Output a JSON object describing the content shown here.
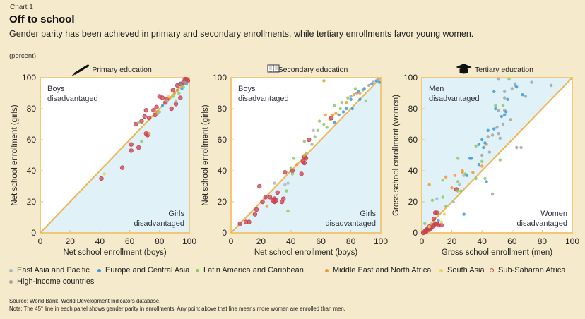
{
  "header": {
    "label": "Chart 1",
    "title": "Off to school",
    "subtitle": "Gender parity has been achieved in primary and secondary enrollments, while tertiary enrollments favor young women.",
    "unit": "(percent)"
  },
  "colors": {
    "background": "#f5eacb",
    "axis": "#f2c878",
    "parity_line": "#f0b450",
    "shade": "#e1f1f8",
    "plot_bg": "#ffffff"
  },
  "legend": [
    {
      "key": "eap",
      "label": "East Asia and Pacific",
      "color": "#a9b7c8"
    },
    {
      "key": "eca",
      "label": "Europe and Central Asia",
      "color": "#3a9be0"
    },
    {
      "key": "lac",
      "label": "Latin America and Caribbean",
      "color": "#8cc867"
    },
    {
      "key": "mena",
      "label": "Middle East and North Africa",
      "color": "#f39a2b"
    },
    {
      "key": "sa",
      "label": "South Asia",
      "color": "#e8d65a"
    },
    {
      "key": "ssa",
      "label": "Sub-Saharan Africa",
      "color": "#c8414e"
    },
    {
      "key": "hi",
      "label": "High-income countries",
      "color": "#a3a3a3"
    }
  ],
  "source": "Source: World Bank, World Development Indicators database.",
  "note": "Note: The 45° line in each panel shows gender parity in enrollments. Any point above that line means more women are enrolled than men.",
  "chart_data": [
    {
      "type": "scatter",
      "title": "Primary education",
      "icon": "pen-icon",
      "xlabel": "Net school enrollment (boys)",
      "ylabel": "Net school enrollment (girls)",
      "xlim": [
        0,
        100
      ],
      "ylim": [
        0,
        100
      ],
      "ticks": [
        0,
        20,
        40,
        60,
        80,
        100
      ],
      "shade": "below",
      "annotations": {
        "upper_left": [
          "Boys",
          "disadvantaged"
        ],
        "lower_right": [
          "Girls",
          "disadvantaged"
        ]
      },
      "points": [
        [
          "ssa",
          41,
          35
        ],
        [
          "sa",
          43,
          38
        ],
        [
          "ssa",
          55,
          42
        ],
        [
          "ssa",
          61,
          53
        ],
        [
          "ssa",
          61,
          57
        ],
        [
          "lac",
          68,
          59
        ],
        [
          "ssa",
          66,
          55
        ],
        [
          "ssa",
          71,
          64
        ],
        [
          "ssa",
          72,
          63
        ],
        [
          "mena",
          73,
          64
        ],
        [
          "ssa",
          64,
          70
        ],
        [
          "ssa",
          68,
          72
        ],
        [
          "lac",
          66,
          71
        ],
        [
          "ssa",
          70,
          75
        ],
        [
          "ssa",
          73,
          74
        ],
        [
          "ssa",
          77,
          76
        ],
        [
          "ssa",
          76,
          79
        ],
        [
          "ssa",
          71,
          79
        ],
        [
          "lac",
          80,
          78
        ],
        [
          "eap",
          79,
          77
        ],
        [
          "ssa",
          78,
          81
        ],
        [
          "mena",
          78,
          78
        ],
        [
          "eca",
          82,
          82
        ],
        [
          "ssa",
          84,
          84
        ],
        [
          "ssa",
          85,
          86
        ],
        [
          "ssa",
          82,
          87
        ],
        [
          "ssa",
          80,
          88
        ],
        [
          "eap",
          85,
          85
        ],
        [
          "mena",
          87,
          87
        ],
        [
          "ssa",
          88,
          80
        ],
        [
          "ssa",
          91,
          83
        ],
        [
          "lac",
          91,
          85
        ],
        [
          "ssa",
          94,
          87
        ],
        [
          "mena",
          90,
          90
        ],
        [
          "eca",
          92,
          92
        ],
        [
          "ssa",
          89,
          92
        ],
        [
          "lac",
          93,
          90
        ],
        [
          "eca",
          95,
          93
        ],
        [
          "ssa",
          92,
          95
        ],
        [
          "ssa",
          94,
          96
        ],
        [
          "mena",
          95,
          95
        ],
        [
          "hi",
          96,
          96
        ],
        [
          "eca",
          97,
          97
        ],
        [
          "ssa",
          97,
          99
        ],
        [
          "lac",
          96,
          94
        ],
        [
          "hi",
          98,
          98
        ],
        [
          "eca",
          98,
          96
        ],
        [
          "mena",
          99,
          99
        ],
        [
          "ssa",
          99,
          98
        ],
        [
          "sa",
          86,
          88
        ],
        [
          "ssa",
          96,
          97
        ],
        [
          "hi",
          97,
          97
        ],
        [
          "eca",
          94,
          96
        ],
        [
          "ssa",
          98,
          99
        ],
        [
          "lac",
          89,
          88
        ],
        [
          "mena",
          92,
          92
        ]
      ]
    },
    {
      "type": "scatter",
      "title": "Secondary education",
      "icon": "book-icon",
      "xlabel": "Net school enrollment (boys)",
      "ylabel": "Net school enrollment (girls)",
      "xlim": [
        0,
        100
      ],
      "ylim": [
        0,
        100
      ],
      "ticks": [
        0,
        20,
        40,
        60,
        80,
        100
      ],
      "shade": "below",
      "annotations": {
        "upper_left": [
          "Boys",
          "disadvantaged"
        ],
        "lower_right": [
          "Girls",
          "disadvantaged"
        ]
      },
      "points": [
        [
          "ssa",
          6,
          6
        ],
        [
          "ssa",
          10,
          7
        ],
        [
          "ssa",
          12,
          7
        ],
        [
          "ssa",
          16,
          12
        ],
        [
          "ssa",
          17,
          15
        ],
        [
          "ssa",
          19,
          30
        ],
        [
          "ssa",
          21,
          20
        ],
        [
          "ssa",
          23,
          23
        ],
        [
          "mena",
          24,
          17
        ],
        [
          "ssa",
          26,
          23
        ],
        [
          "ssa",
          28,
          21
        ],
        [
          "ssa",
          29,
          20
        ],
        [
          "ssa",
          29,
          22
        ],
        [
          "ssa",
          30,
          21
        ],
        [
          "ssa",
          31,
          26
        ],
        [
          "eap",
          29,
          32
        ],
        [
          "ssa",
          34,
          20
        ],
        [
          "ssa",
          35,
          22
        ],
        [
          "eap",
          36,
          31
        ],
        [
          "ssa",
          36,
          39
        ],
        [
          "lac",
          37,
          27
        ],
        [
          "eap",
          38,
          32
        ],
        [
          "lac",
          38,
          14
        ],
        [
          "ssa",
          41,
          40
        ],
        [
          "lac",
          41,
          38
        ],
        [
          "lac",
          40,
          42
        ],
        [
          "mena",
          44,
          44
        ],
        [
          "lac",
          42,
          48
        ],
        [
          "ssa",
          47,
          38
        ],
        [
          "ssa",
          49,
          45
        ],
        [
          "ssa",
          50,
          48
        ],
        [
          "ssa",
          49,
          49
        ],
        [
          "ssa",
          48,
          46
        ],
        [
          "mena",
          49,
          50
        ],
        [
          "lac",
          50,
          51
        ],
        [
          "lac",
          54,
          57
        ],
        [
          "eap",
          55,
          66
        ],
        [
          "ssa",
          52,
          60
        ],
        [
          "lac",
          56,
          62
        ],
        [
          "lac",
          58,
          66
        ],
        [
          "lac",
          59,
          72
        ],
        [
          "lac",
          62,
          70
        ],
        [
          "mena",
          63,
          76
        ],
        [
          "mena",
          66,
          73
        ],
        [
          "lac",
          64,
          68
        ],
        [
          "ssa",
          67,
          74
        ],
        [
          "mena",
          68,
          76
        ],
        [
          "lac",
          69,
          82
        ],
        [
          "eca",
          69,
          71
        ],
        [
          "mena",
          70,
          77
        ],
        [
          "lac",
          73,
          80
        ],
        [
          "eca",
          75,
          78
        ],
        [
          "lac",
          74,
          84
        ],
        [
          "mena",
          77,
          84
        ],
        [
          "eca",
          77,
          80
        ],
        [
          "lac",
          78,
          87
        ],
        [
          "hi",
          80,
          88
        ],
        [
          "eca",
          80,
          86
        ],
        [
          "mena",
          82,
          89
        ],
        [
          "hi",
          84,
          90
        ],
        [
          "eca",
          85,
          91
        ],
        [
          "lac",
          83,
          93
        ],
        [
          "mena",
          86,
          90
        ],
        [
          "eca",
          86,
          86
        ],
        [
          "hi",
          88,
          92
        ],
        [
          "eca",
          89,
          93
        ],
        [
          "lac",
          90,
          85
        ],
        [
          "hi",
          92,
          95
        ],
        [
          "eca",
          94,
          96
        ],
        [
          "hi",
          95,
          97
        ],
        [
          "eca",
          97,
          98
        ],
        [
          "hi",
          98,
          99
        ],
        [
          "eca",
          99,
          97
        ],
        [
          "mena",
          62,
          98
        ],
        [
          "lac",
          49,
          59
        ],
        [
          "eca",
          72,
          76
        ],
        [
          "eca",
          81,
          80
        ]
      ]
    },
    {
      "type": "scatter",
      "title": "Tertiary education",
      "icon": "graduation-cap-icon",
      "xlabel": "Gross school enrollment (men)",
      "ylabel": "Gross school enrollment (women)",
      "xlim": [
        0,
        100
      ],
      "ylim": [
        0,
        100
      ],
      "ticks": [
        0,
        20,
        40,
        60,
        80,
        100
      ],
      "shade": "above",
      "annotations": {
        "upper_left": [
          "Men",
          "disadvantaged"
        ],
        "lower_right": [
          "Women",
          "disadvantaged"
        ]
      },
      "points": [
        [
          "ssa",
          1,
          0
        ],
        [
          "ssa",
          2,
          1
        ],
        [
          "ssa",
          3,
          1
        ],
        [
          "ssa",
          3,
          2
        ],
        [
          "ssa",
          4,
          2
        ],
        [
          "ssa",
          4,
          3
        ],
        [
          "ssa",
          5,
          2
        ],
        [
          "ssa",
          5,
          4
        ],
        [
          "ssa",
          6,
          3
        ],
        [
          "ssa",
          7,
          4
        ],
        [
          "ssa",
          8,
          5
        ],
        [
          "ssa",
          9,
          6
        ],
        [
          "ssa",
          10,
          6
        ],
        [
          "ssa",
          11,
          5
        ],
        [
          "ssa",
          13,
          5
        ],
        [
          "ssa",
          8,
          9
        ],
        [
          "ssa",
          9,
          13
        ],
        [
          "ssa",
          10,
          13
        ],
        [
          "lac",
          2,
          6
        ],
        [
          "sa",
          5,
          4
        ],
        [
          "mena",
          5,
          31
        ],
        [
          "lac",
          7,
          21
        ],
        [
          "eap",
          10,
          22
        ],
        [
          "eca",
          11,
          8
        ],
        [
          "sa",
          13,
          7
        ],
        [
          "lac",
          14,
          23
        ],
        [
          "lac",
          14,
          34
        ],
        [
          "mena",
          16,
          36
        ],
        [
          "sa",
          15,
          12
        ],
        [
          "lac",
          16,
          17
        ],
        [
          "mena",
          20,
          29
        ],
        [
          "eap",
          21,
          20
        ],
        [
          "mena",
          22,
          37
        ],
        [
          "ssa",
          23,
          28
        ],
        [
          "lac",
          24,
          27
        ],
        [
          "lac",
          24,
          33
        ],
        [
          "eap",
          25,
          31
        ],
        [
          "lac",
          26,
          27
        ],
        [
          "mena",
          27,
          39
        ],
        [
          "mena",
          27,
          40
        ],
        [
          "eap",
          28,
          37
        ],
        [
          "eca",
          28,
          12
        ],
        [
          "lac",
          29,
          38
        ],
        [
          "eca",
          30,
          37
        ],
        [
          "eca",
          33,
          48
        ],
        [
          "mena",
          34,
          39
        ],
        [
          "lac",
          36,
          35
        ],
        [
          "eca",
          38,
          44
        ],
        [
          "mena",
          40,
          43
        ],
        [
          "lac",
          40,
          46
        ],
        [
          "lac",
          42,
          35
        ],
        [
          "eca",
          43,
          33
        ],
        [
          "hi",
          47,
          25
        ],
        [
          "lac",
          24,
          48
        ],
        [
          "eca",
          32,
          48
        ],
        [
          "lac",
          36,
          56
        ],
        [
          "eca",
          38,
          57
        ],
        [
          "hi",
          40,
          50
        ],
        [
          "eca",
          41,
          55
        ],
        [
          "mena",
          43,
          57
        ],
        [
          "hi",
          45,
          52
        ],
        [
          "eca",
          40,
          60
        ],
        [
          "eca",
          42,
          58
        ],
        [
          "hi",
          44,
          62
        ],
        [
          "eca",
          44,
          66
        ],
        [
          "hi",
          47,
          63
        ],
        [
          "eca",
          48,
          67
        ],
        [
          "hi",
          50,
          68
        ],
        [
          "hi",
          51,
          64
        ],
        [
          "hi",
          52,
          61
        ],
        [
          "hi",
          54,
          70
        ],
        [
          "eca",
          55,
          76
        ],
        [
          "hi",
          55,
          79
        ],
        [
          "eca",
          56,
          78
        ],
        [
          "lac",
          49,
          82
        ],
        [
          "eca",
          49,
          80
        ],
        [
          "lac",
          54,
          82
        ],
        [
          "eca",
          48,
          91
        ],
        [
          "hi",
          55,
          87
        ],
        [
          "hi",
          55,
          91
        ],
        [
          "eca",
          57,
          86
        ],
        [
          "hi",
          60,
          93
        ],
        [
          "hi",
          62,
          95
        ],
        [
          "eca",
          63,
          94
        ],
        [
          "hi",
          62,
          96
        ],
        [
          "lac",
          58,
          99
        ],
        [
          "hi",
          51,
          99
        ],
        [
          "eca",
          67,
          89
        ],
        [
          "hi",
          69,
          88
        ],
        [
          "hi",
          73,
          97
        ],
        [
          "hi",
          86,
          95
        ],
        [
          "hi",
          63,
          55
        ],
        [
          "hi",
          66,
          55
        ],
        [
          "hi",
          51,
          79
        ],
        [
          "eca",
          53,
          75
        ],
        [
          "hi",
          59,
          73
        ],
        [
          "lac",
          52,
          47
        ]
      ]
    }
  ]
}
